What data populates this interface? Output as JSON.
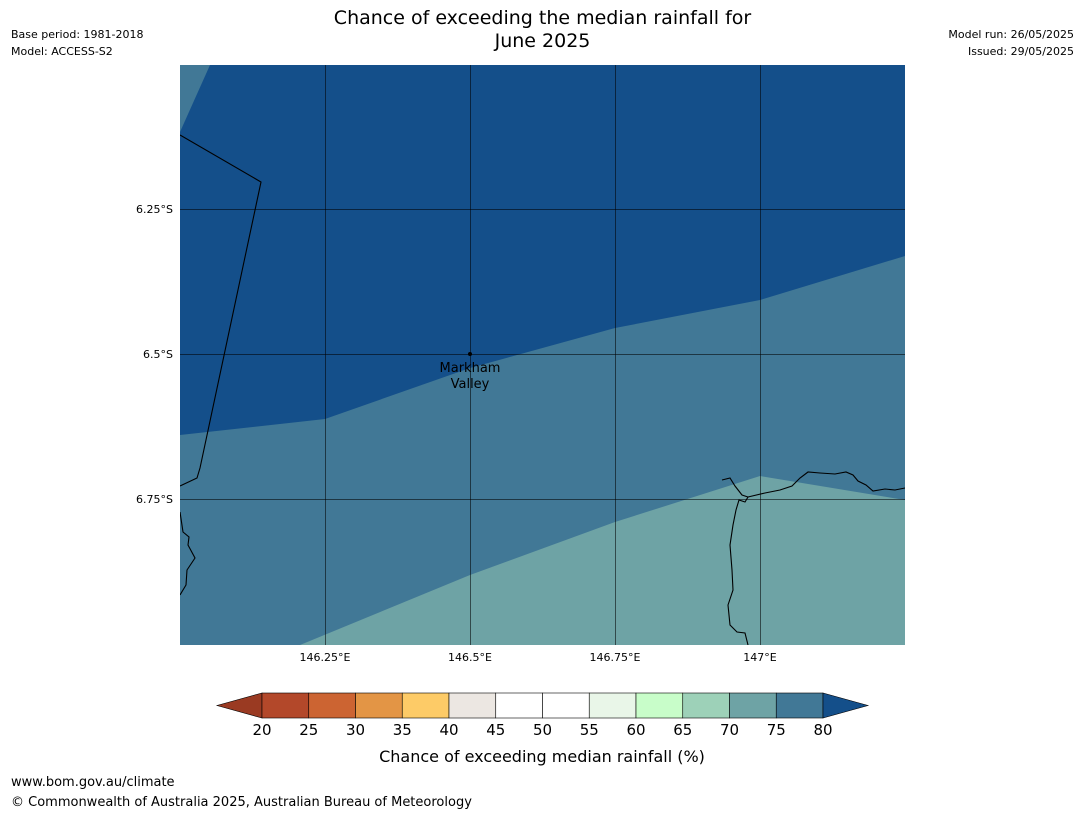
{
  "header": {
    "base_period": "Base period: 1981-2018",
    "model": "Model: ACCESS-S2",
    "title_line1": "Chance of exceeding the median rainfall for",
    "title_line2": "June 2025",
    "model_run": "Model run: 26/05/2025",
    "issued": "Issued: 29/05/2025"
  },
  "map": {
    "lat_labels": [
      "6.25°S",
      "6.5°S",
      "6.75°S"
    ],
    "lon_labels": [
      "146.25°E",
      "146.5°E",
      "146.75°E",
      "147°E"
    ],
    "place": {
      "line1": "Markham",
      "line2": "Valley"
    },
    "region_colors": {
      "band_75_80": "#6ea3a5",
      "band_80_plus": "#144f8a",
      "band_70_75": "#417896",
      "outline": "#000000"
    }
  },
  "colorbar": {
    "tick_labels": [
      "20",
      "25",
      "30",
      "35",
      "40",
      "45",
      "50",
      "55",
      "60",
      "65",
      "70",
      "75",
      "80"
    ],
    "colors": [
      "#9a3a22",
      "#b3482a",
      "#cc6432",
      "#e39545",
      "#fdcb67",
      "#ece7e2",
      "#ffffff",
      "#ffffff",
      "#e9f6e8",
      "#c8fdc9",
      "#9dd1b8",
      "#6ea3a5",
      "#417896",
      "#144f8a"
    ],
    "label": "Chance of exceeding median rainfall (%)"
  },
  "footer": {
    "url": "www.bom.gov.au/climate",
    "copyright": "© Commonwealth of Australia 2025, Australian Bureau of Meteorology"
  }
}
